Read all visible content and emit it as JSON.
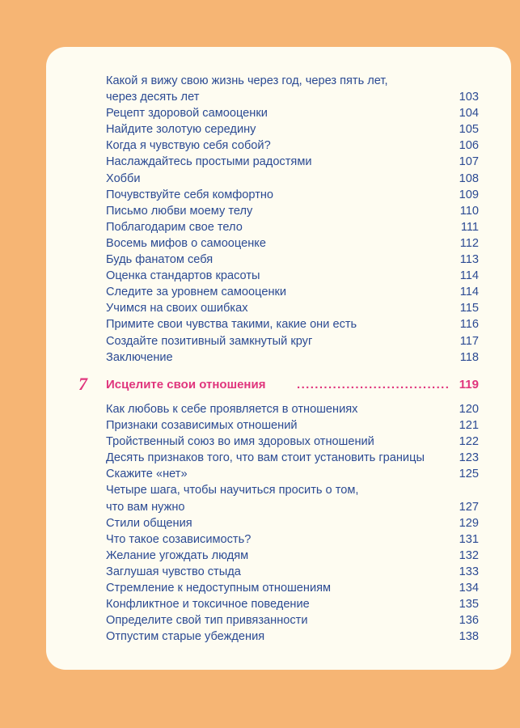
{
  "toc_part1": [
    {
      "lines": [
        "Какой я вижу свою жизнь через год, через пять лет,",
        "через десять лет"
      ],
      "page": "103"
    },
    {
      "lines": [
        "Рецепт здоровой самооценки"
      ],
      "page": "104"
    },
    {
      "lines": [
        "Найдите золотую середину"
      ],
      "page": "105"
    },
    {
      "lines": [
        "Когда я чувствую себя собой?"
      ],
      "page": "106"
    },
    {
      "lines": [
        "Наслаждайтесь простыми радостями"
      ],
      "page": "107"
    },
    {
      "lines": [
        "Хобби"
      ],
      "page": "108"
    },
    {
      "lines": [
        "Почувствуйте себя комфортно"
      ],
      "page": "109"
    },
    {
      "lines": [
        "Письмо любви моему телу"
      ],
      "page": "110"
    },
    {
      "lines": [
        "Поблагодарим свое тело"
      ],
      "page": "111"
    },
    {
      "lines": [
        "Восемь мифов о самооценке"
      ],
      "page": "112"
    },
    {
      "lines": [
        "Будь фанатом себя"
      ],
      "page": "113"
    },
    {
      "lines": [
        "Оценка стандартов красоты"
      ],
      "page": "114"
    },
    {
      "lines": [
        "Следите за уровнем самооценки"
      ],
      "page": "114"
    },
    {
      "lines": [
        "Учимся на своих ошибках"
      ],
      "page": "115"
    },
    {
      "lines": [
        "Примите свои чувства такими, какие они есть"
      ],
      "page": "116"
    },
    {
      "lines": [
        "Создайте позитивный замкнутый круг"
      ],
      "page": "117"
    },
    {
      "lines": [
        "Заключение"
      ],
      "page": "118"
    }
  ],
  "chapter": {
    "number": "7",
    "title": "Исцелите свои отношения",
    "page": "119"
  },
  "toc_part2": [
    {
      "lines": [
        "Как любовь к себе проявляется в отношениях"
      ],
      "page": "120"
    },
    {
      "lines": [
        "Признаки созависимых отношений"
      ],
      "page": "121"
    },
    {
      "lines": [
        "Тройственный союз во имя здоровых отношений"
      ],
      "page": "122"
    },
    {
      "lines": [
        "Десять признаков того, что вам стоит установить границы"
      ],
      "page": "123"
    },
    {
      "lines": [
        "Скажите «нет»"
      ],
      "page": "125"
    },
    {
      "lines": [
        "Четыре шага, чтобы научиться просить о том,",
        "что вам нужно"
      ],
      "page": "127"
    },
    {
      "lines": [
        "Стили общения"
      ],
      "page": "129"
    },
    {
      "lines": [
        "Что такое созависимость?"
      ],
      "page": "131"
    },
    {
      "lines": [
        "Желание угождать людям"
      ],
      "page": "132"
    },
    {
      "lines": [
        "Заглушая чувство стыда"
      ],
      "page": "133"
    },
    {
      "lines": [
        "Стремление к недоступным отношениям"
      ],
      "page": "134"
    },
    {
      "lines": [
        "Конфликтное и токсичное поведение"
      ],
      "page": "135"
    },
    {
      "lines": [
        "Определите свой тип привязанности"
      ],
      "page": "136"
    },
    {
      "lines": [
        "Отпустим старые убеждения"
      ],
      "page": "138"
    }
  ],
  "colors": {
    "background": "#f6b574",
    "card": "#fefcf1",
    "text": "#2b4a93",
    "chapter": "#e0357d"
  }
}
